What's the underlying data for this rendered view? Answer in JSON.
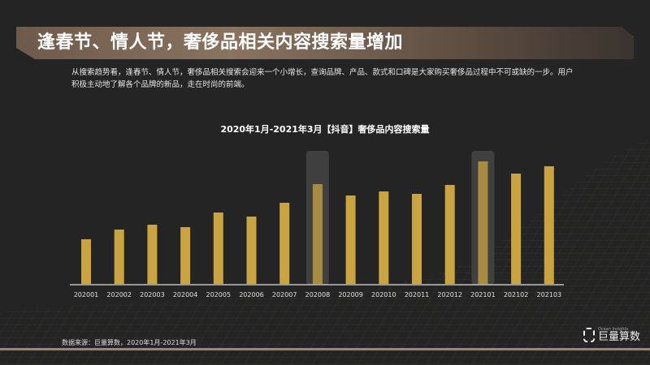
{
  "header": {
    "title": "逢春节、情人节，奢侈品相关内容搜索量增加"
  },
  "description": "从搜索趋势看，逢春节、情人节，奢侈品相关搜索会迎来一个小增长，查询品牌、产品、款式和口碑是大家购买奢侈品过程中不可或缺的一步。用户积极主动地了解各个品牌的新品，走在时尚的前端。",
  "chart_data": {
    "type": "bar",
    "title": "2020年1月-2021年3月【抖音】奢侈品内容搜索量",
    "categories": [
      "202001",
      "202002",
      "202003",
      "202004",
      "202005",
      "202006",
      "202007",
      "202008",
      "202009",
      "202010",
      "202011",
      "202012",
      "202101",
      "202102",
      "202103"
    ],
    "values": [
      55,
      67,
      73,
      70,
      88,
      83,
      100,
      123,
      109,
      114,
      111,
      122,
      151,
      136,
      145
    ],
    "highlighted": [
      "202008",
      "202101"
    ],
    "bar_color": "#c9a441",
    "highlight_color": "#454545",
    "grid": false,
    "yaxis_visible": false
  },
  "footer": {
    "source": "数据来源：巨量算数，2020年1月-2021年3月",
    "logo_text": "巨量算数",
    "logo_sub": "Ocean Insights"
  }
}
